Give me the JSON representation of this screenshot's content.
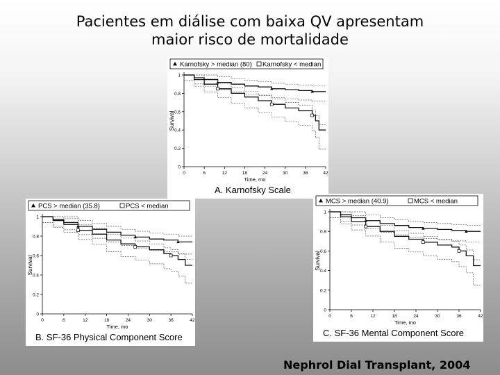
{
  "slide": {
    "title_line1": "Pacientes em diálise com baixa QV apresentam",
    "title_line2": "maior risco de mortalidade",
    "citation": "Nephrol Dial Transplant, 2004"
  },
  "colors": {
    "curve": "#222222",
    "ci": "#555555",
    "background_top": "#ffffff",
    "background_bottom": "#8c8c8c"
  },
  "chart_data": [
    {
      "type": "line",
      "title": "A. Karnofsky Scale",
      "xlabel": "Time, mo",
      "ylabel": "Survival",
      "xticks": [
        0,
        6,
        12,
        18,
        24,
        30,
        36,
        42
      ],
      "yticks": [
        0,
        0.2,
        0.4,
        0.6,
        0.8,
        1
      ],
      "xlim": [
        0,
        42
      ],
      "ylim": [
        0,
        1
      ],
      "legend": {
        "placement": "top",
        "high_label": "Karnofsky > median (80)",
        "low_label": "Karnofsky < median"
      },
      "series": [
        {
          "name": "Karnofsky > median (80)",
          "marker": "triangle",
          "x": [
            0,
            3,
            6,
            10,
            14,
            18,
            22,
            26,
            30,
            34,
            38,
            42
          ],
          "y": [
            1,
            0.97,
            0.95,
            0.92,
            0.9,
            0.88,
            0.87,
            0.85,
            0.84,
            0.83,
            0.82,
            0.82
          ]
        },
        {
          "name": "Karnofsky < median",
          "marker": "square",
          "x": [
            0,
            3,
            6,
            10,
            14,
            18,
            22,
            26,
            30,
            34,
            38,
            39,
            40,
            42
          ],
          "y": [
            1,
            0.95,
            0.9,
            0.85,
            0.8,
            0.76,
            0.72,
            0.68,
            0.64,
            0.61,
            0.56,
            0.5,
            0.4,
            0.4
          ]
        }
      ]
    },
    {
      "type": "line",
      "title": "B. SF-36 Physical Component Score",
      "xlabel": "Time, mo",
      "ylabel": "Survival",
      "xticks": [
        0,
        6,
        12,
        18,
        24,
        30,
        36,
        42
      ],
      "yticks": [
        0,
        0.2,
        0.4,
        0.6,
        0.8,
        1
      ],
      "xlim": [
        0,
        42
      ],
      "ylim": [
        0,
        1
      ],
      "legend": {
        "placement": "top",
        "high_label": "PCS > median (35.8)",
        "low_label": "PCS < median"
      },
      "series": [
        {
          "name": "PCS > median (35.8)",
          "marker": "triangle",
          "x": [
            0,
            3,
            6,
            10,
            14,
            18,
            22,
            26,
            30,
            34,
            38,
            42
          ],
          "y": [
            1,
            0.97,
            0.94,
            0.9,
            0.87,
            0.84,
            0.81,
            0.79,
            0.77,
            0.76,
            0.74,
            0.74
          ]
        },
        {
          "name": "PCS < median",
          "marker": "square",
          "x": [
            0,
            3,
            6,
            10,
            14,
            18,
            22,
            26,
            30,
            34,
            36,
            38,
            40,
            42
          ],
          "y": [
            1,
            0.96,
            0.92,
            0.86,
            0.82,
            0.76,
            0.72,
            0.69,
            0.66,
            0.62,
            0.6,
            0.56,
            0.5,
            0.5
          ]
        }
      ]
    },
    {
      "type": "line",
      "title": "C. SF-36 Mental Component Score",
      "xlabel": "Time, mo",
      "ylabel": "Survival",
      "xticks": [
        0,
        6,
        12,
        18,
        24,
        30,
        36,
        42
      ],
      "yticks": [
        0,
        0.2,
        0.4,
        0.6,
        0.8,
        1
      ],
      "xlim": [
        0,
        42
      ],
      "ylim": [
        0,
        1
      ],
      "legend": {
        "placement": "top",
        "high_label": "MCS > median (40.9)",
        "low_label": "MCS < median"
      },
      "series": [
        {
          "name": "MCS > median (40.9)",
          "marker": "triangle",
          "x": [
            0,
            3,
            6,
            10,
            14,
            18,
            22,
            26,
            30,
            34,
            38,
            42
          ],
          "y": [
            1,
            0.97,
            0.94,
            0.91,
            0.88,
            0.86,
            0.84,
            0.83,
            0.82,
            0.81,
            0.8,
            0.8
          ]
        },
        {
          "name": "MCS < median",
          "marker": "square",
          "x": [
            0,
            3,
            6,
            10,
            14,
            18,
            22,
            26,
            30,
            34,
            36,
            38,
            40,
            42
          ],
          "y": [
            1,
            0.95,
            0.9,
            0.85,
            0.8,
            0.75,
            0.72,
            0.69,
            0.66,
            0.64,
            0.6,
            0.55,
            0.45,
            0.45
          ]
        }
      ]
    }
  ]
}
